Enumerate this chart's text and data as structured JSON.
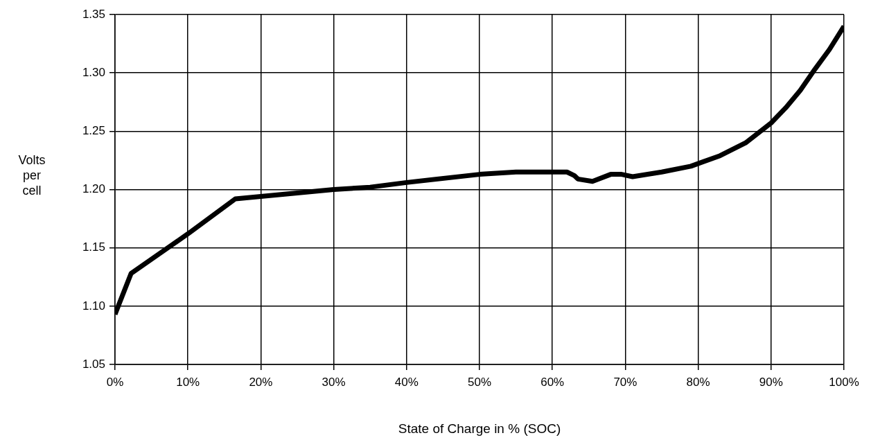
{
  "chart_data": {
    "type": "line",
    "xlabel": "State of Charge in % (SOC)",
    "ylabel": "Volts per cell",
    "x": [
      0,
      2.2,
      10,
      16.5,
      20,
      30,
      35,
      40,
      50,
      55,
      62,
      63,
      63.5,
      65.5,
      68,
      69.5,
      71,
      75,
      79,
      83,
      86.5,
      90,
      92,
      94,
      96,
      98,
      100
    ],
    "series": [
      {
        "color": "#000000",
        "values": [
          1.093,
          1.128,
          1.162,
          1.192,
          1.194,
          1.2,
          1.202,
          1.206,
          1.213,
          1.215,
          1.215,
          1.212,
          1.209,
          1.207,
          1.213,
          1.213,
          1.211,
          1.215,
          1.22,
          1.229,
          1.24,
          1.257,
          1.27,
          1.285,
          1.303,
          1.32,
          1.34
        ]
      }
    ],
    "xlim": [
      0,
      100
    ],
    "xticks": [
      {
        "value": 0,
        "label": "0%"
      },
      {
        "value": 10,
        "label": "10%"
      },
      {
        "value": 20,
        "label": "20%"
      },
      {
        "value": 30,
        "label": "30%"
      },
      {
        "value": 40,
        "label": "40%"
      },
      {
        "value": 50,
        "label": "50%"
      },
      {
        "value": 60,
        "label": "60%"
      },
      {
        "value": 70,
        "label": "70%"
      },
      {
        "value": 80,
        "label": "80%"
      },
      {
        "value": 90,
        "label": "90%"
      },
      {
        "value": 100,
        "label": "100%"
      }
    ],
    "ylim": [
      1.05,
      1.35
    ],
    "yticks": [
      {
        "value": 1.05,
        "label": "1.05"
      },
      {
        "value": 1.1,
        "label": "1.10"
      },
      {
        "value": 1.15,
        "label": "1.15"
      },
      {
        "value": 1.2,
        "label": "1.20"
      },
      {
        "value": 1.25,
        "label": "1.25"
      },
      {
        "value": 1.3,
        "label": "1.30"
      },
      {
        "value": 1.35,
        "label": "1.35"
      }
    ],
    "grid": true,
    "legend": false,
    "marker": "none",
    "line_style": "solid"
  }
}
